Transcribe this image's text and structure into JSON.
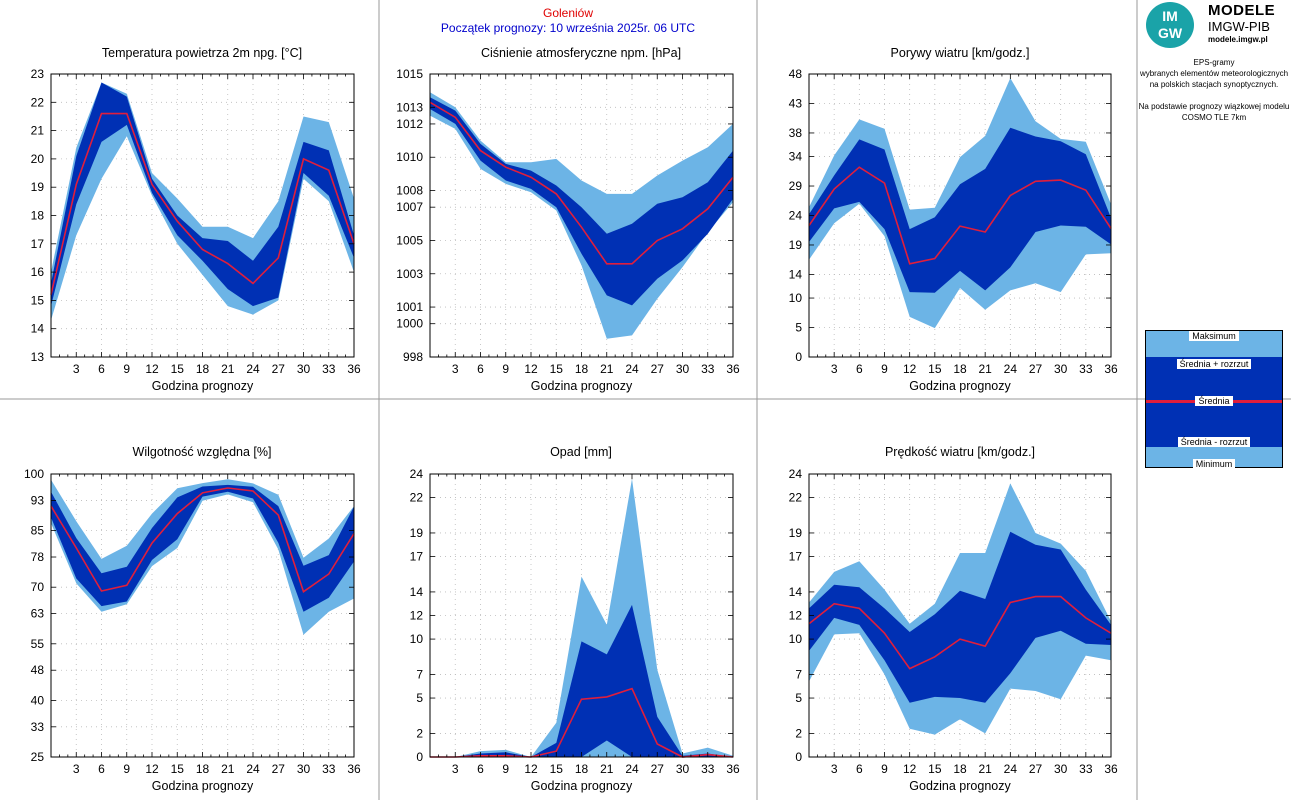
{
  "header": {
    "station": "Goleniów",
    "forecast_start": "Początek prognozy: 10 września 2025r. 06 UTC"
  },
  "logo": {
    "badge_top": "IM",
    "badge_bottom": "GW",
    "title": "MODELE",
    "subtitle": "IMGW-PIB",
    "url": "modele.imgw.pl"
  },
  "info": {
    "lines": [
      "EPS-gramy",
      "wybranych elementów meteorologicznych",
      "na polskich stacjach  synoptycznych.",
      "",
      "Na podstawie prognozy wiązkowej modelu",
      "COSMO TLE 7km"
    ]
  },
  "legend": {
    "max": "Maksimum",
    "mean_plus": "Średnia + rozrzut",
    "mean": "Średnia",
    "mean_minus": "Średnia - rozrzut",
    "min": "Minimum"
  },
  "colors": {
    "outer_band": "#6cb4e6",
    "inner_band": "#0030b4",
    "mean_line": "#e01e3c",
    "background": "#ffffff",
    "grid": "#bbbbbb",
    "station_text": "#e00000",
    "start_text": "#0000cc"
  },
  "chart_data": [
    {
      "type": "area",
      "title": "Temperatura powietrza 2m npg. [°C]",
      "xlabel": "Godzina prognozy",
      "x": [
        0,
        3,
        6,
        9,
        12,
        15,
        18,
        21,
        24,
        27,
        30,
        33,
        36
      ],
      "xticks": [
        3,
        6,
        9,
        12,
        15,
        18,
        21,
        24,
        27,
        30,
        33,
        36
      ],
      "yticks": [
        13,
        14,
        15,
        16,
        17,
        18,
        19,
        20,
        21,
        22,
        23
      ],
      "ylim": [
        13,
        23
      ],
      "grid": true,
      "series": {
        "min": [
          14.3,
          17.3,
          19.3,
          20.8,
          18.7,
          17.0,
          15.9,
          14.8,
          14.5,
          15.0,
          19.3,
          18.5,
          16.0
        ],
        "lower": [
          14.8,
          18.4,
          20.6,
          21.2,
          18.8,
          17.3,
          16.4,
          15.4,
          14.8,
          15.1,
          19.5,
          18.7,
          16.5
        ],
        "mean": [
          15.2,
          19.1,
          21.6,
          21.6,
          19.1,
          17.8,
          16.8,
          16.3,
          15.6,
          16.5,
          20.0,
          19.6,
          17.0
        ],
        "upper": [
          15.6,
          20.1,
          22.7,
          22.2,
          19.3,
          18.0,
          17.2,
          17.1,
          16.4,
          17.6,
          20.6,
          20.3,
          17.3
        ],
        "max": [
          16.0,
          20.4,
          22.7,
          22.3,
          19.5,
          18.6,
          17.6,
          17.6,
          17.2,
          18.5,
          21.5,
          21.3,
          18.6
        ]
      }
    },
    {
      "type": "area",
      "title": "Ciśnienie atmosferyczne npm. [hPa]",
      "xlabel": "Godzina prognozy",
      "x": [
        0,
        3,
        6,
        9,
        12,
        15,
        18,
        21,
        24,
        27,
        30,
        33,
        36
      ],
      "xticks": [
        3,
        6,
        9,
        12,
        15,
        18,
        21,
        24,
        27,
        30,
        33,
        36
      ],
      "yticks": [
        998,
        1000,
        1001,
        1003,
        1005,
        1007,
        1008,
        1010,
        1012,
        1013,
        1015
      ],
      "ylim": [
        998,
        1015
      ],
      "grid": true,
      "series": {
        "min": [
          1012.5,
          1011.7,
          1009.3,
          1008.4,
          1007.9,
          1006.8,
          1003.5,
          999.1,
          999.3,
          1001.5,
          1003.4,
          1005.5,
          1007.3
        ],
        "lower": [
          1012.9,
          1012.0,
          1009.8,
          1008.6,
          1008.1,
          1007.0,
          1004.2,
          1001.7,
          1001.1,
          1002.7,
          1003.8,
          1005.4,
          1007.5
        ],
        "mean": [
          1013.3,
          1012.4,
          1010.4,
          1009.4,
          1008.8,
          1007.8,
          1005.8,
          1003.6,
          1003.6,
          1005.0,
          1005.7,
          1006.9,
          1008.8
        ],
        "upper": [
          1013.6,
          1012.8,
          1010.8,
          1009.6,
          1009.2,
          1008.3,
          1007.0,
          1005.4,
          1006.0,
          1007.2,
          1007.6,
          1008.5,
          1010.4
        ],
        "max": [
          1013.9,
          1013.0,
          1011.0,
          1009.7,
          1009.7,
          1009.9,
          1008.6,
          1007.8,
          1007.8,
          1008.9,
          1009.8,
          1010.6,
          1012.0
        ]
      }
    },
    {
      "type": "area",
      "title": "Porywy wiatru [km/godz.]",
      "xlabel": "Godzina prognozy",
      "x": [
        0,
        3,
        6,
        9,
        12,
        15,
        18,
        21,
        24,
        27,
        30,
        33,
        36
      ],
      "xticks": [
        3,
        6,
        9,
        12,
        15,
        18,
        21,
        24,
        27,
        30,
        33,
        36
      ],
      "yticks": [
        0,
        5,
        10,
        14,
        19,
        24,
        29,
        34,
        38,
        43,
        48
      ],
      "ylim": [
        0,
        48
      ],
      "grid": true,
      "series": {
        "min": [
          16.5,
          22.7,
          26.0,
          20.5,
          6.8,
          4.9,
          11.7,
          8.0,
          11.3,
          12.5,
          11.0,
          17.4,
          17.6
        ],
        "lower": [
          19.5,
          25.2,
          26.3,
          21.7,
          11.0,
          10.9,
          14.6,
          11.3,
          15.2,
          21.2,
          22.3,
          22.1,
          19.1
        ],
        "mean": [
          22.3,
          28.5,
          32.2,
          29.5,
          15.8,
          16.7,
          22.2,
          21.2,
          27.4,
          29.8,
          30.0,
          28.3,
          21.8
        ],
        "upper": [
          24.2,
          30.8,
          36.9,
          35.2,
          21.7,
          23.7,
          29.3,
          31.9,
          38.9,
          37.4,
          36.6,
          34.4,
          23.6
        ],
        "max": [
          25.4,
          34.2,
          40.3,
          38.7,
          25.0,
          25.3,
          33.9,
          37.5,
          47.3,
          40.0,
          37.0,
          36.5,
          25.9
        ]
      }
    },
    {
      "type": "area",
      "title": "Wilgotność względna [%]",
      "xlabel": "Godzina prognozy",
      "x": [
        0,
        3,
        6,
        9,
        12,
        15,
        18,
        21,
        24,
        27,
        30,
        33,
        36
      ],
      "xticks": [
        3,
        6,
        9,
        12,
        15,
        18,
        21,
        24,
        27,
        30,
        33,
        36
      ],
      "yticks": [
        25,
        33,
        40,
        48,
        55,
        63,
        70,
        78,
        85,
        93,
        100
      ],
      "ylim": [
        25,
        100
      ],
      "grid": true,
      "series": {
        "min": [
          87.0,
          71.0,
          63.5,
          65.5,
          75.6,
          80.4,
          92.9,
          94.6,
          92.5,
          80.0,
          57.4,
          63.5,
          67.0
        ],
        "lower": [
          88.5,
          72.3,
          65.0,
          66.2,
          77.2,
          82.7,
          94.0,
          95.3,
          93.5,
          81.8,
          63.5,
          67.2,
          76.8
        ],
        "mean": [
          91.5,
          80.4,
          69.0,
          70.5,
          81.7,
          89.5,
          95.0,
          96.3,
          95.5,
          89.1,
          68.8,
          73.5,
          84.2
        ],
        "upper": [
          95.3,
          83.0,
          73.7,
          75.4,
          85.7,
          93.8,
          96.7,
          97.1,
          96.6,
          91.5,
          75.7,
          78.5,
          91.4
        ],
        "max": [
          98.5,
          87.5,
          77.5,
          81.0,
          89.5,
          96.2,
          97.6,
          98.6,
          97.5,
          94.5,
          77.8,
          82.9,
          91.5
        ]
      }
    },
    {
      "type": "area",
      "title": "Opad [mm]",
      "xlabel": "Godzina prognozy",
      "x": [
        0,
        3,
        6,
        9,
        12,
        15,
        18,
        21,
        24,
        27,
        30,
        33,
        36
      ],
      "xticks": [
        3,
        6,
        9,
        12,
        15,
        18,
        21,
        24,
        27,
        30,
        33,
        36
      ],
      "yticks": [
        0,
        2,
        5,
        7,
        10,
        12,
        14,
        17,
        19,
        22,
        24
      ],
      "ylim": [
        0,
        24
      ],
      "grid": true,
      "series": {
        "min": [
          0,
          0,
          0,
          0,
          0,
          0,
          0,
          0,
          0,
          0,
          0,
          0,
          0
        ],
        "lower": [
          0,
          0,
          0,
          0,
          0,
          0,
          0,
          1.4,
          0,
          0,
          0,
          0,
          0
        ],
        "mean": [
          0,
          0,
          0.1,
          0.1,
          0,
          0.5,
          4.9,
          5.1,
          5.8,
          1.1,
          0,
          0.2,
          0
        ],
        "upper": [
          0,
          0,
          0.3,
          0.4,
          0,
          1.2,
          9.8,
          8.7,
          12.9,
          3.4,
          0.1,
          0.3,
          0
        ],
        "max": [
          0,
          0,
          0.5,
          0.6,
          0,
          2.9,
          15.3,
          11.2,
          23.6,
          7.4,
          0.3,
          0.8,
          0.1
        ]
      }
    },
    {
      "type": "area",
      "title": "Prędkość wiatru [km/godz.]",
      "xlabel": "Godzina prognozy",
      "x": [
        0,
        3,
        6,
        9,
        12,
        15,
        18,
        21,
        24,
        27,
        30,
        33,
        36
      ],
      "xticks": [
        3,
        6,
        9,
        12,
        15,
        18,
        21,
        24,
        27,
        30,
        33,
        36
      ],
      "yticks": [
        0,
        2,
        5,
        7,
        10,
        12,
        14,
        17,
        19,
        22,
        24
      ],
      "ylim": [
        0,
        24
      ],
      "grid": true,
      "series": {
        "min": [
          6.4,
          10.4,
          10.5,
          7.0,
          2.4,
          1.9,
          3.2,
          2.0,
          5.8,
          5.6,
          4.9,
          8.6,
          8.2
        ],
        "lower": [
          9.0,
          11.8,
          11.2,
          8.2,
          4.6,
          5.1,
          5.0,
          4.6,
          7.1,
          10.1,
          10.7,
          9.6,
          9.5
        ],
        "mean": [
          11.3,
          13.0,
          12.6,
          10.5,
          7.5,
          8.5,
          10.0,
          9.4,
          13.1,
          13.6,
          13.6,
          11.8,
          10.5
        ],
        "upper": [
          12.6,
          14.6,
          14.4,
          12.6,
          10.6,
          12.1,
          14.1,
          13.4,
          19.1,
          18.0,
          17.6,
          14.2,
          11.2
        ],
        "max": [
          13.1,
          15.7,
          16.6,
          14.2,
          11.3,
          13.0,
          17.3,
          17.3,
          23.2,
          19.0,
          18.1,
          15.8,
          11.5
        ]
      }
    }
  ]
}
